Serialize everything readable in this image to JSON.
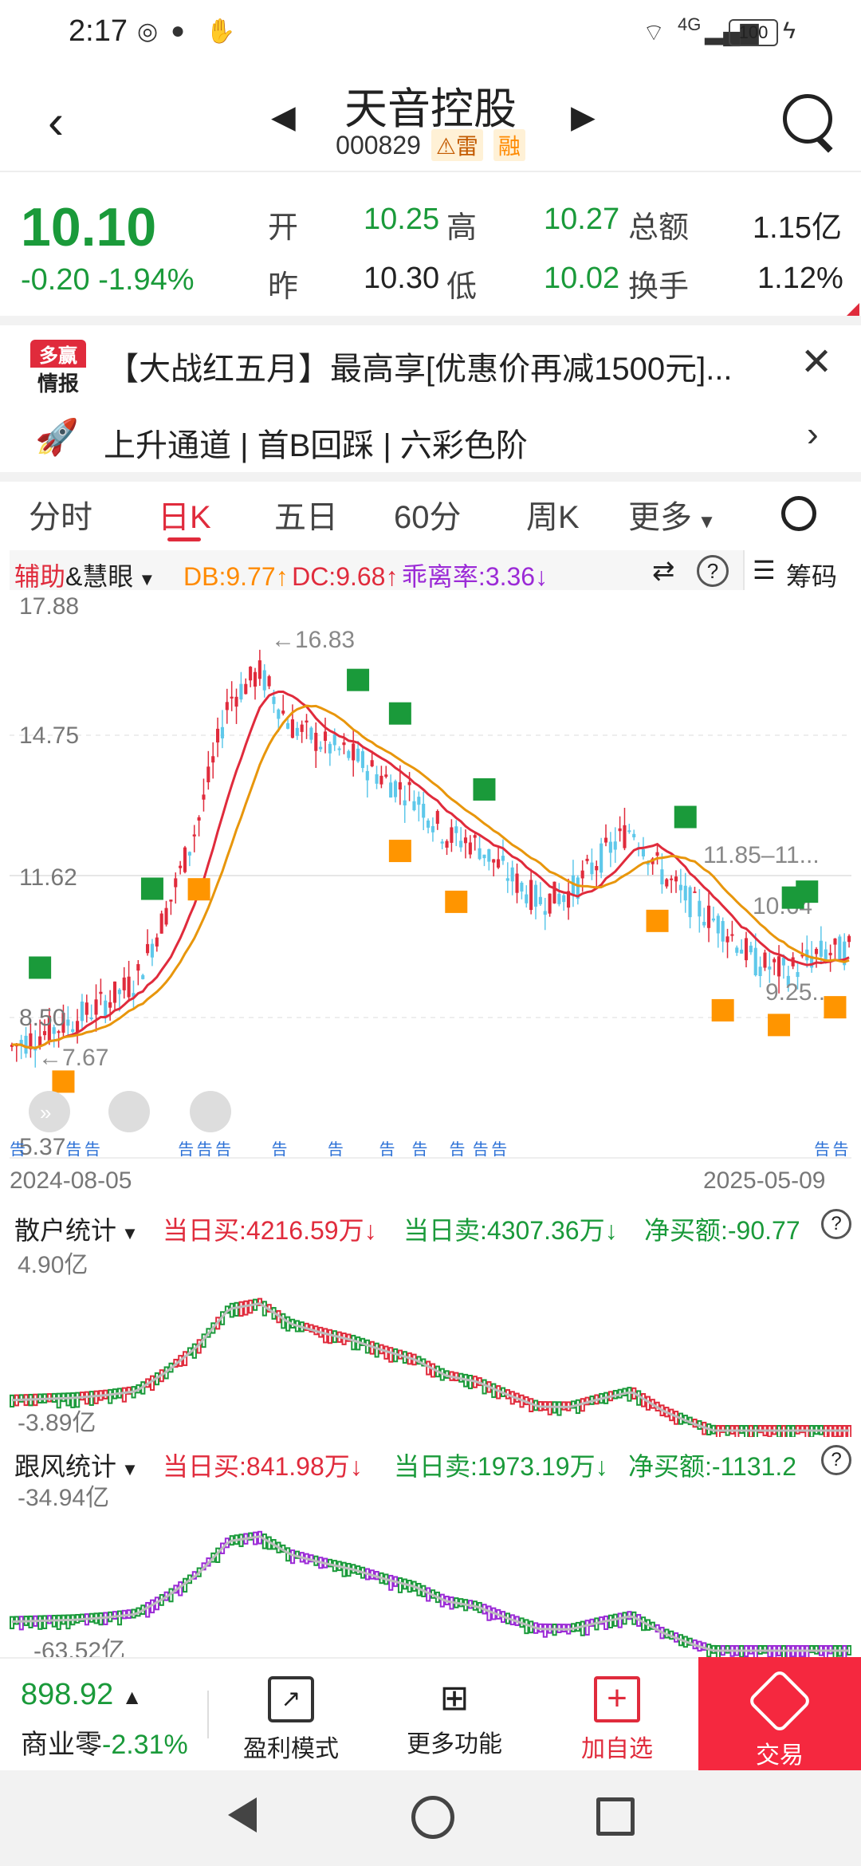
{
  "status": {
    "time": "2:17",
    "battery": "100",
    "network": "4G"
  },
  "header": {
    "title": "天音控股",
    "code": "000829",
    "tag1": "雷",
    "tag2": "融"
  },
  "quote": {
    "price": "10.10",
    "change": "-0.20",
    "change_pct": "-1.94%",
    "open_label": "开",
    "open": "10.25",
    "high_label": "高",
    "high": "10.27",
    "amount_label": "总额",
    "amount": "1.15亿",
    "prev_label": "昨",
    "prev": "10.30",
    "low_label": "低",
    "low": "10.02",
    "turnover_label": "换手",
    "turnover": "1.12%"
  },
  "ad": {
    "logo_top": "多赢",
    "logo_bottom": "情报",
    "text": "【大战红五月】最高享[优惠价再减1500元]..."
  },
  "channel": {
    "text": "上升通道 | 首B回踩 | 六彩色阶"
  },
  "tabs": [
    "分时",
    "日K",
    "五日",
    "60分",
    "周K",
    "更多"
  ],
  "indicator": {
    "name_red": "辅助",
    "name_rest": "&慧眼",
    "db": "DB:9.77↑",
    "dc": "DC:9.68↑",
    "bias": "乖离率:3.36↓",
    "chips": "筹码"
  },
  "kline": {
    "y_ticks": [
      "17.88",
      "14.75",
      "11.62",
      "8.50",
      "5.37"
    ],
    "annotations": [
      "←16.83",
      "←7.67",
      "11.85–11...",
      "10.64",
      "9.25..."
    ],
    "date_start": "2024-08-05",
    "date_end": "2025-05-09",
    "notice_tag": "告"
  },
  "retail": {
    "label": "散户统计",
    "buy": "当日买:4216.59万↓",
    "sell": "当日卖:4307.36万↓",
    "net": "净买额:-90.77",
    "top": "4.90亿",
    "bottom": "-3.89亿"
  },
  "follow": {
    "label": "跟风统计",
    "buy": "当日买:841.98万↓",
    "sell": "当日卖:1973.19万↓",
    "net": "净买额:-1131.2",
    "top": "-34.94亿",
    "bottom": "-63.52亿"
  },
  "bottombar": {
    "index_value": "898.92",
    "index_name": "商业零",
    "index_change": "-2.31%",
    "btn1": "盈利模式",
    "btn2": "更多功能",
    "btn3": "加自选",
    "btn4": "交易"
  },
  "colors": {
    "up": "#e02b3c",
    "down": "#1a9a3a",
    "accent": "#ff8a00",
    "trade": "#f5283f"
  },
  "chart_data": {
    "type": "line",
    "title": "",
    "x_range": [
      "2024-08-05",
      "2025-05-09"
    ],
    "ylim": [
      5.37,
      17.88
    ],
    "series": [
      {
        "values": [
          7.9,
          8.2,
          8.5,
          8.9,
          9.4,
          11.0,
          13.0,
          15.8,
          16.4,
          15.2,
          14.8,
          14.5,
          14.0,
          13.6,
          12.7,
          12.5,
          11.8,
          11.2,
          11.4,
          12.2,
          12.9,
          11.8,
          11.1,
          10.6,
          9.8,
          9.6,
          10.0,
          10.1
        ]
      }
    ]
  }
}
